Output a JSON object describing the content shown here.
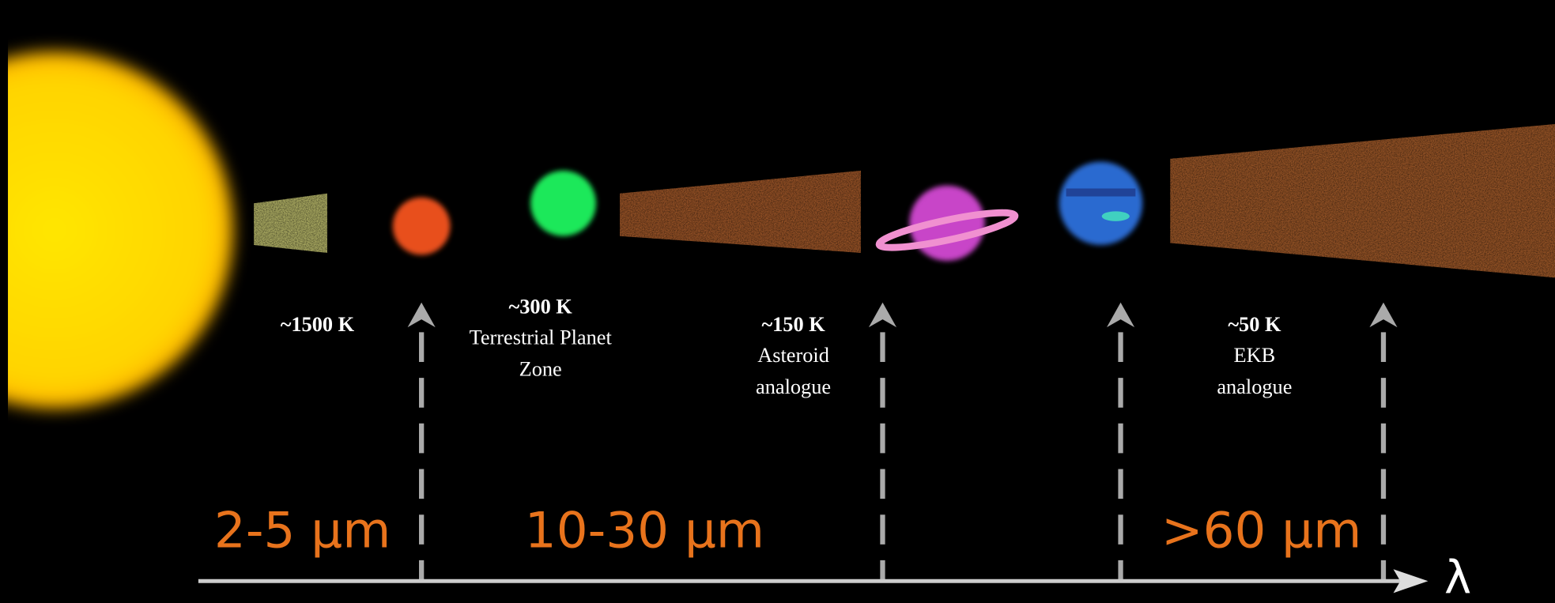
{
  "zones": [
    {
      "temperature": "~1500 K",
      "lines": []
    },
    {
      "temperature": "~300 K",
      "lines": [
        "Terrestrial Planet",
        "Zone"
      ]
    },
    {
      "temperature": "~150 K",
      "lines": [
        "Asteroid",
        "analogue"
      ]
    },
    {
      "temperature": "~50 K",
      "lines": [
        "EKB",
        "analogue"
      ]
    }
  ],
  "bands": [
    "2-5 μm",
    "10-30 μm",
    ">60 μm"
  ],
  "axis_symbol": "λ"
}
